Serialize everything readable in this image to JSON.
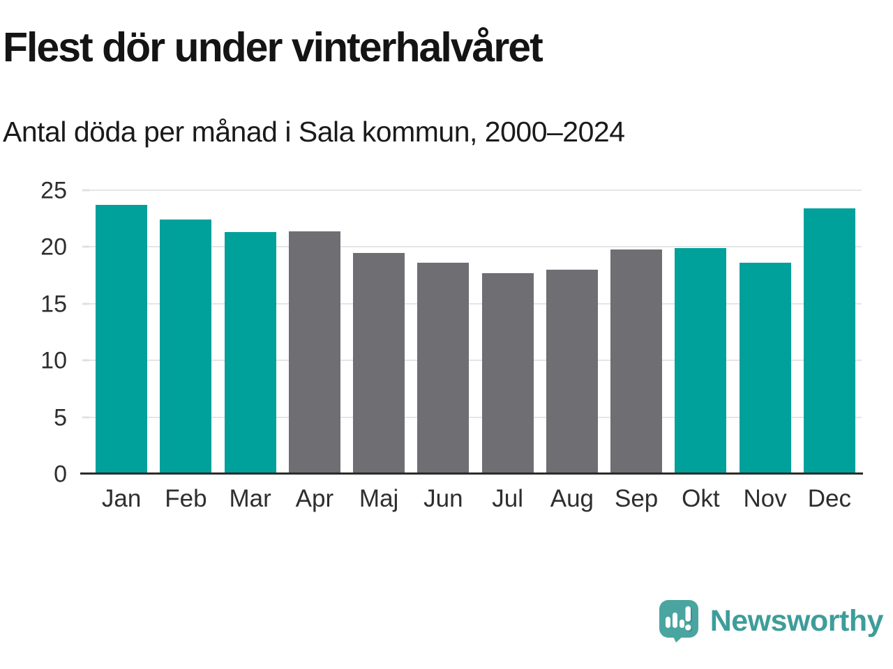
{
  "header": {
    "title": "Flest dör under vinterhalvåret",
    "subtitle": "Antal döda per månad i Sala kommun, 2000–2024"
  },
  "chart_data": {
    "type": "bar",
    "title": "Flest dör under vinterhalvåret",
    "subtitle": "Antal döda per månad i Sala kommun, 2000–2024",
    "categories": [
      "Jan",
      "Feb",
      "Mar",
      "Apr",
      "Maj",
      "Jun",
      "Jul",
      "Aug",
      "Sep",
      "Okt",
      "Nov",
      "Dec"
    ],
    "values": [
      23.7,
      22.4,
      21.3,
      21.4,
      19.5,
      18.6,
      17.7,
      18.0,
      19.8,
      19.9,
      18.6,
      23.4
    ],
    "bar_colors": [
      "#00A09B",
      "#00A09B",
      "#00A09B",
      "#6E6E73",
      "#6E6E73",
      "#6E6E73",
      "#6E6E73",
      "#6E6E73",
      "#6E6E73",
      "#00A09B",
      "#00A09B",
      "#00A09B"
    ],
    "xlabel": "",
    "ylabel": "",
    "ylim": [
      0,
      25
    ],
    "yticks": [
      0,
      5,
      10,
      15,
      20,
      25
    ],
    "grid": true,
    "legend": "none",
    "colors": {
      "winter_highlight": "#00A09B",
      "summer_muted": "#6E6E73",
      "gridline": "#E5E5E5",
      "axis_line": "#2B2B2B",
      "text_dark": "#141414",
      "axis_text": "#2E2E2E"
    }
  },
  "footer": {
    "brand": "Newsworthy",
    "brand_color": "#3E9D99",
    "logo_icon_color": "#4AA5A1",
    "logo_icon_shadow_color": "#3A8F8B"
  }
}
